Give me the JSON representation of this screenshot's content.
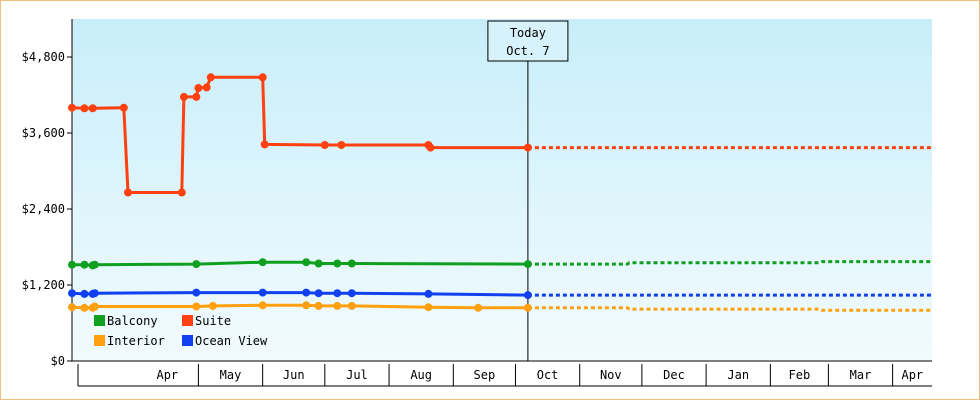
{
  "chart_data": {
    "type": "line",
    "today_label": {
      "line1": "Today",
      "line2": "Oct. 7"
    },
    "today_date": "2013-10-07",
    "x_range": [
      "2013-03-01",
      "2014-04-20"
    ],
    "y_range": [
      0,
      5400
    ],
    "y_ticks": [
      {
        "value": 0,
        "label": "$0"
      },
      {
        "value": 1200,
        "label": "$1,200"
      },
      {
        "value": 2400,
        "label": "$2,400"
      },
      {
        "value": 3600,
        "label": "$3,600"
      },
      {
        "value": 4800,
        "label": "$4,800"
      }
    ],
    "x_months": [
      {
        "label": "Apr",
        "start": "2013-04-01",
        "end": "2013-05-01"
      },
      {
        "label": "May",
        "start": "2013-05-01",
        "end": "2013-06-01"
      },
      {
        "label": "Jun",
        "start": "2013-06-01",
        "end": "2013-07-01"
      },
      {
        "label": "Jul",
        "start": "2013-07-01",
        "end": "2013-08-01"
      },
      {
        "label": "Aug",
        "start": "2013-08-01",
        "end": "2013-09-01"
      },
      {
        "label": "Sep",
        "start": "2013-09-01",
        "end": "2013-10-01"
      },
      {
        "label": "Oct",
        "start": "2013-10-01",
        "end": "2013-11-01"
      },
      {
        "label": "Nov",
        "start": "2013-11-01",
        "end": "2013-12-01"
      },
      {
        "label": "Dec",
        "start": "2013-12-01",
        "end": "2014-01-01"
      },
      {
        "label": "Jan",
        "start": "2014-01-01",
        "end": "2014-02-01"
      },
      {
        "label": "Feb",
        "start": "2014-02-01",
        "end": "2014-03-01"
      },
      {
        "label": "Mar",
        "start": "2014-03-01",
        "end": "2014-04-01"
      },
      {
        "label": "Apr",
        "start": "2014-04-01",
        "end": "2014-04-20"
      }
    ],
    "grid": false,
    "legend_position": "bottom-left",
    "series": [
      {
        "name": "Suite",
        "color": "#ff4010",
        "points": [
          [
            "2013-03-01",
            4000
          ],
          [
            "2013-03-07",
            3990
          ],
          [
            "2013-03-11",
            3990
          ],
          [
            "2013-03-26",
            4000
          ],
          [
            "2013-03-28",
            2660
          ],
          [
            "2013-04-23",
            2660
          ],
          [
            "2013-04-24",
            4170
          ],
          [
            "2013-04-30",
            4170
          ],
          [
            "2013-05-01",
            4310
          ],
          [
            "2013-05-05",
            4320
          ],
          [
            "2013-05-07",
            4480
          ],
          [
            "2013-06-01",
            4480
          ],
          [
            "2013-06-02",
            3420
          ],
          [
            "2013-07-01",
            3410
          ],
          [
            "2013-07-09",
            3410
          ],
          [
            "2013-08-20",
            3410
          ],
          [
            "2013-08-21",
            3370
          ],
          [
            "2013-10-07",
            3370
          ]
        ],
        "projection": [
          [
            "2013-10-07",
            3370
          ],
          [
            "2014-04-20",
            3370
          ]
        ]
      },
      {
        "name": "Balcony",
        "color": "#10a020",
        "points": [
          [
            "2013-03-01",
            1520
          ],
          [
            "2013-03-07",
            1520
          ],
          [
            "2013-03-11",
            1510
          ],
          [
            "2013-03-12",
            1520
          ],
          [
            "2013-04-30",
            1530
          ],
          [
            "2013-06-01",
            1560
          ],
          [
            "2013-06-22",
            1560
          ],
          [
            "2013-06-28",
            1540
          ],
          [
            "2013-07-07",
            1540
          ],
          [
            "2013-07-14",
            1540
          ],
          [
            "2013-10-07",
            1530
          ]
        ],
        "projection": [
          [
            "2013-10-07",
            1530
          ],
          [
            "2013-11-24",
            1530
          ],
          [
            "2013-11-25",
            1550
          ],
          [
            "2014-02-25",
            1550
          ],
          [
            "2014-02-26",
            1570
          ],
          [
            "2014-04-20",
            1570
          ]
        ]
      },
      {
        "name": "Ocean View",
        "color": "#1040f0",
        "points": [
          [
            "2013-03-01",
            1070
          ],
          [
            "2013-03-07",
            1060
          ],
          [
            "2013-03-11",
            1060
          ],
          [
            "2013-03-12",
            1070
          ],
          [
            "2013-04-30",
            1080
          ],
          [
            "2013-06-01",
            1080
          ],
          [
            "2013-06-22",
            1080
          ],
          [
            "2013-06-28",
            1070
          ],
          [
            "2013-07-07",
            1070
          ],
          [
            "2013-07-14",
            1070
          ],
          [
            "2013-08-20",
            1060
          ],
          [
            "2013-10-07",
            1040
          ]
        ],
        "projection": [
          [
            "2013-10-07",
            1040
          ],
          [
            "2014-04-20",
            1040
          ]
        ]
      },
      {
        "name": "Interior",
        "color": "#ffa010",
        "points": [
          [
            "2013-03-01",
            850
          ],
          [
            "2013-03-07",
            840
          ],
          [
            "2013-03-11",
            840
          ],
          [
            "2013-03-12",
            860
          ],
          [
            "2013-04-30",
            860
          ],
          [
            "2013-05-08",
            870
          ],
          [
            "2013-06-01",
            880
          ],
          [
            "2013-06-22",
            880
          ],
          [
            "2013-06-28",
            870
          ],
          [
            "2013-07-07",
            870
          ],
          [
            "2013-07-14",
            870
          ],
          [
            "2013-08-20",
            850
          ],
          [
            "2013-09-13",
            840
          ],
          [
            "2013-10-07",
            840
          ]
        ],
        "projection": [
          [
            "2013-10-07",
            840
          ],
          [
            "2013-11-24",
            840
          ],
          [
            "2013-11-25",
            820
          ],
          [
            "2014-02-25",
            820
          ],
          [
            "2014-02-26",
            800
          ],
          [
            "2014-04-20",
            800
          ]
        ]
      }
    ],
    "legend": [
      {
        "name": "Balcony",
        "color": "#10a020"
      },
      {
        "name": "Suite",
        "color": "#ff4010"
      },
      {
        "name": "Interior",
        "color": "#ffa010"
      },
      {
        "name": "Ocean View",
        "color": "#1040f0"
      }
    ]
  }
}
